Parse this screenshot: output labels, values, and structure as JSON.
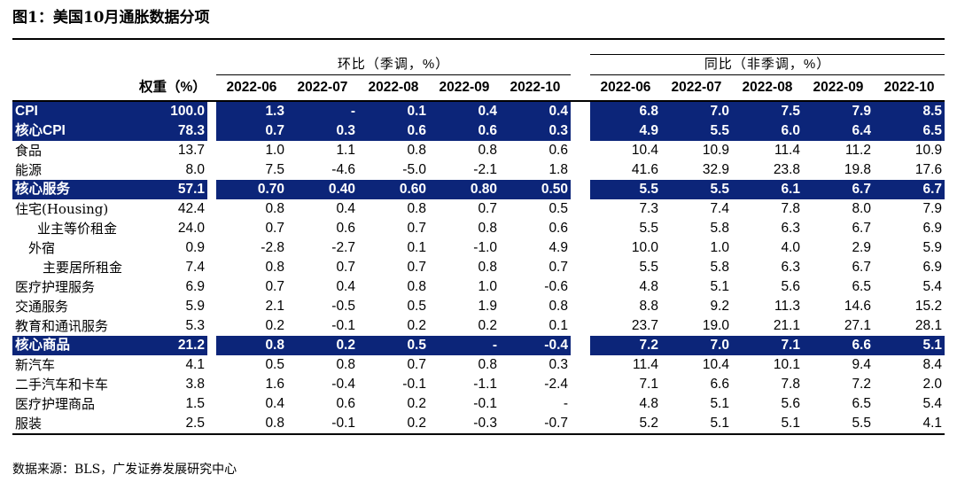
{
  "title": "图1：美国10月通胀数据分项",
  "header": {
    "mom_label": "环比（季调，%）",
    "yoy_label": "同比（非季调，%）",
    "weight_label": "权重（%）",
    "mom_months": [
      "2022-06",
      "2022-07",
      "2022-08",
      "2022-09",
      "2022-10"
    ],
    "yoy_months": [
      "2022-06",
      "2022-07",
      "2022-08",
      "2022-09",
      "2022-10"
    ]
  },
  "rows": [
    {
      "label": "CPI",
      "weight": "100.0",
      "mom": [
        "1.3",
        "-",
        "0.1",
        "0.4",
        "0.4"
      ],
      "yoy": [
        "6.8",
        "7.0",
        "7.5",
        "7.9",
        "8.5"
      ]
    },
    {
      "label": "核心CPI",
      "weight": "78.3",
      "mom": [
        "0.7",
        "0.3",
        "0.6",
        "0.6",
        "0.3"
      ],
      "yoy": [
        "4.9",
        "5.5",
        "6.0",
        "6.4",
        "6.5"
      ]
    },
    {
      "label": "食品",
      "weight": "13.7",
      "mom": [
        "1.0",
        "1.1",
        "0.8",
        "0.8",
        "0.6"
      ],
      "yoy": [
        "10.4",
        "10.9",
        "11.4",
        "11.2",
        "10.9"
      ]
    },
    {
      "label": "能源",
      "weight": "8.0",
      "mom": [
        "7.5",
        "-4.6",
        "-5.0",
        "-2.1",
        "1.8"
      ],
      "yoy": [
        "41.6",
        "32.9",
        "23.8",
        "19.8",
        "17.6"
      ]
    },
    {
      "label": "核心服务",
      "weight": "57.1",
      "mom": [
        "0.70",
        "0.40",
        "0.60",
        "0.80",
        "0.50"
      ],
      "yoy": [
        "5.5",
        "5.5",
        "6.1",
        "6.7",
        "6.7"
      ]
    },
    {
      "label": "住宅(Housing)",
      "weight": "42.4",
      "mom": [
        "0.8",
        "0.4",
        "0.8",
        "0.7",
        "0.5"
      ],
      "yoy": [
        "7.3",
        "7.4",
        "7.8",
        "8.0",
        "7.9"
      ]
    },
    {
      "label": "业主等价租金",
      "weight": "24.0",
      "mom": [
        "0.7",
        "0.6",
        "0.7",
        "0.8",
        "0.6"
      ],
      "yoy": [
        "5.5",
        "5.8",
        "6.3",
        "6.7",
        "6.9"
      ]
    },
    {
      "label": "外宿",
      "weight": "0.9",
      "mom": [
        "-2.8",
        "-2.7",
        "0.1",
        "-1.0",
        "4.9"
      ],
      "yoy": [
        "10.0",
        "1.0",
        "4.0",
        "2.9",
        "5.9"
      ]
    },
    {
      "label": "主要居所租金",
      "weight": "7.4",
      "mom": [
        "0.8",
        "0.7",
        "0.7",
        "0.8",
        "0.7"
      ],
      "yoy": [
        "5.5",
        "5.8",
        "6.3",
        "6.7",
        "6.9"
      ]
    },
    {
      "label": "医疗护理服务",
      "weight": "6.9",
      "mom": [
        "0.7",
        "0.4",
        "0.8",
        "1.0",
        "-0.6"
      ],
      "yoy": [
        "4.8",
        "5.1",
        "5.6",
        "6.5",
        "5.4"
      ]
    },
    {
      "label": "交通服务",
      "weight": "5.9",
      "mom": [
        "2.1",
        "-0.5",
        "0.5",
        "1.9",
        "0.8"
      ],
      "yoy": [
        "8.8",
        "9.2",
        "11.3",
        "14.6",
        "15.2"
      ]
    },
    {
      "label": "教育和通讯服务",
      "weight": "5.3",
      "mom": [
        "0.2",
        "-0.1",
        "0.2",
        "0.2",
        "0.1"
      ],
      "yoy": [
        "23.7",
        "19.0",
        "21.1",
        "27.1",
        "28.1"
      ]
    },
    {
      "label": "核心商品",
      "weight": "21.2",
      "mom": [
        "0.8",
        "0.2",
        "0.5",
        "-",
        "-0.4"
      ],
      "yoy": [
        "7.2",
        "7.0",
        "7.1",
        "6.6",
        "5.1"
      ]
    },
    {
      "label": "新汽车",
      "weight": "4.1",
      "mom": [
        "0.5",
        "0.8",
        "0.7",
        "0.8",
        "0.3"
      ],
      "yoy": [
        "11.4",
        "10.4",
        "10.1",
        "9.4",
        "8.4"
      ]
    },
    {
      "label": "二手汽车和卡车",
      "weight": "3.8",
      "mom": [
        "1.6",
        "-0.4",
        "-0.1",
        "-1.1",
        "-2.4"
      ],
      "yoy": [
        "7.1",
        "6.6",
        "7.8",
        "7.2",
        "2.0"
      ]
    },
    {
      "label": "医疗护理商品",
      "weight": "1.5",
      "mom": [
        "0.4",
        "0.6",
        "0.2",
        "-0.1",
        "-"
      ],
      "yoy": [
        "4.8",
        "5.1",
        "5.6",
        "6.5",
        "5.4"
      ]
    },
    {
      "label": "服装",
      "weight": "2.5",
      "mom": [
        "0.8",
        "-0.1",
        "0.2",
        "-0.3",
        "-0.7"
      ],
      "yoy": [
        "5.2",
        "5.1",
        "5.1",
        "5.5",
        "4.1"
      ]
    }
  ],
  "colors": {
    "highlight_bg": "#0c2579",
    "highlight_text": "#ffffff"
  },
  "source": "数据来源：BLS，广发证券发展研究中心"
}
